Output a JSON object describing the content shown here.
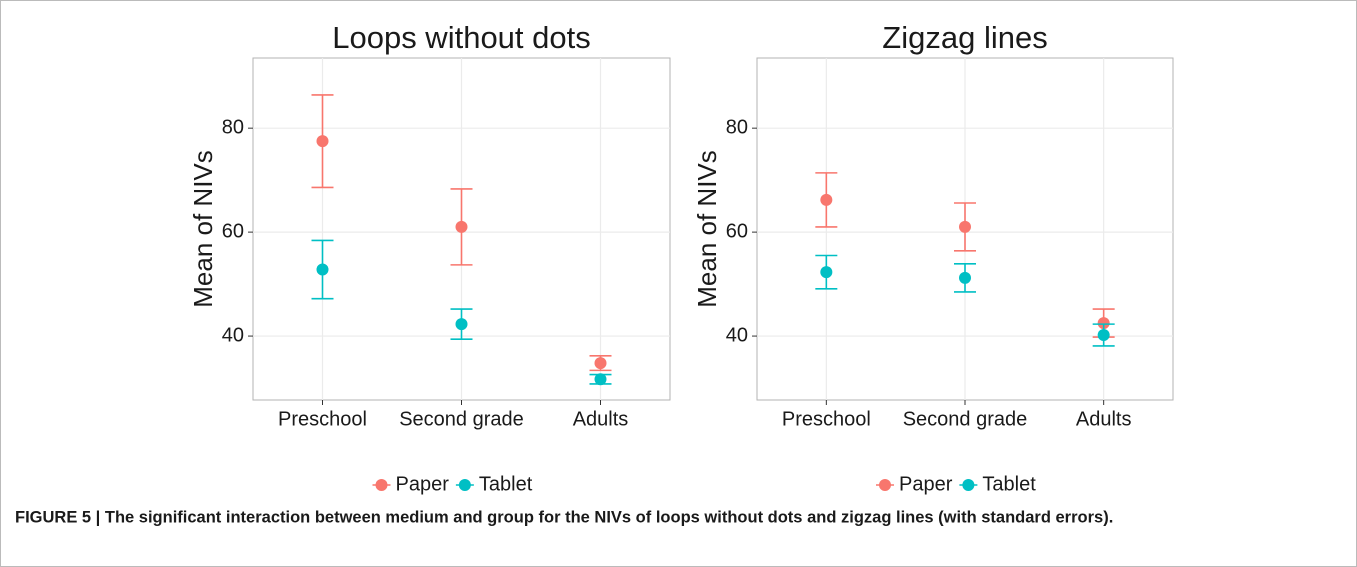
{
  "chart_data": [
    {
      "type": "pointrange",
      "title": "Loops without dots",
      "y_label": "Mean of NIVs",
      "categories": [
        "Preschool",
        "Second grade",
        "Adults"
      ],
      "series": [
        {
          "name": "Paper",
          "color": "#F8766D",
          "values": [
            77.5,
            61,
            34.8
          ],
          "errors": [
            8.9,
            7.3,
            1.4
          ]
        },
        {
          "name": "Tablet",
          "color": "#00BFC4",
          "values": [
            52.8,
            42.3,
            31.7
          ],
          "errors": [
            5.6,
            2.9,
            0.9
          ]
        }
      ],
      "ylim": [
        27.7,
        93.5
      ],
      "yticks": [
        40,
        60,
        80
      ],
      "grid": true,
      "legend": "bottom"
    },
    {
      "type": "pointrange",
      "title": "Zigzag lines",
      "y_label": "Mean of NIVs",
      "categories": [
        "Preschool",
        "Second grade",
        "Adults"
      ],
      "series": [
        {
          "name": "Paper",
          "color": "#F8766D",
          "values": [
            66.2,
            61,
            42.5
          ],
          "errors": [
            5.2,
            4.6,
            2.7
          ]
        },
        {
          "name": "Tablet",
          "color": "#00BFC4",
          "values": [
            52.3,
            51.2,
            40.2
          ],
          "errors": [
            3.2,
            2.7,
            2.1
          ]
        }
      ],
      "ylim": [
        27.7,
        93.5
      ],
      "yticks": [
        40,
        60,
        80
      ],
      "grid": true,
      "legend": "bottom"
    }
  ],
  "caption": "FIGURE 5 | The significant interaction between medium and group for the NIVs of loops without dots and zigzag lines (with standard errors)."
}
